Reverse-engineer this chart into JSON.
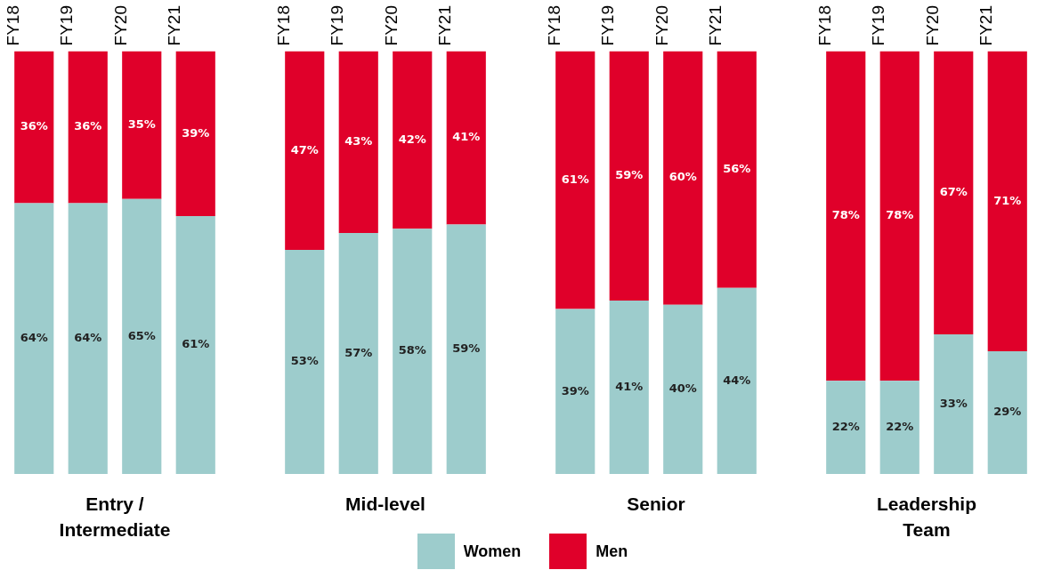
{
  "chart_data": [
    {
      "type": "bar",
      "stacked": true,
      "xlabel": "Entry / Intermediate",
      "categories": [
        "FY18",
        "FY19",
        "FY20",
        "FY21"
      ],
      "ylim": [
        0,
        100
      ],
      "tick_labels": "x",
      "legend": "bottom",
      "series": [
        {
          "name": "Women",
          "color": "#9dcccc",
          "values": [
            64,
            64,
            65,
            61
          ],
          "value_labels": [
            "64%",
            "64%",
            "65%",
            "61%"
          ]
        },
        {
          "name": "Men",
          "color": "#e0002a",
          "values": [
            36,
            36,
            35,
            39
          ],
          "value_labels": [
            "36%",
            "36%",
            "35%",
            "39%"
          ]
        }
      ]
    },
    {
      "type": "bar",
      "stacked": true,
      "xlabel": "Mid-level",
      "categories": [
        "FY18",
        "FY19",
        "FY20",
        "FY21"
      ],
      "ylim": [
        0,
        100
      ],
      "tick_labels": "x",
      "series": [
        {
          "color": "#9dcccc",
          "values": [
            53,
            57,
            58,
            59
          ],
          "value_labels": [
            "53%",
            "57%",
            "58%",
            "59%"
          ]
        },
        {
          "color": "#e0002a",
          "values": [
            47,
            43,
            42,
            41
          ],
          "value_labels": [
            "47%",
            "43%",
            "42%",
            "41%"
          ]
        }
      ]
    },
    {
      "type": "bar",
      "stacked": true,
      "xlabel": "Senior",
      "categories": [
        "FY18",
        "FY19",
        "FY20",
        "FY21"
      ],
      "ylim": [
        0,
        100
      ],
      "tick_labels": "x",
      "series": [
        {
          "color": "#9dcccc",
          "values": [
            39,
            41,
            40,
            44
          ],
          "value_labels": [
            "39%",
            "41%",
            "40%",
            "44%"
          ]
        },
        {
          "color": "#e0002a",
          "values": [
            61,
            59,
            60,
            56
          ],
          "value_labels": [
            "61%",
            "59%",
            "60%",
            "56%"
          ]
        }
      ]
    },
    {
      "type": "bar",
      "stacked": true,
      "xlabel": "Leadership Team",
      "categories": [
        "FY18",
        "FY19",
        "FY20",
        "FY21"
      ],
      "ylim": [
        0,
        100
      ],
      "tick_labels": "x",
      "series": [
        {
          "color": "#9dcccc",
          "values": [
            22,
            22,
            33,
            29
          ],
          "value_labels": [
            "22%",
            "22%",
            "33%",
            "29%"
          ]
        },
        {
          "color": "#e0002a",
          "values": [
            78,
            78,
            67,
            71
          ],
          "value_labels": [
            "78%",
            "78%",
            "67%",
            "71%"
          ]
        }
      ]
    }
  ]
}
